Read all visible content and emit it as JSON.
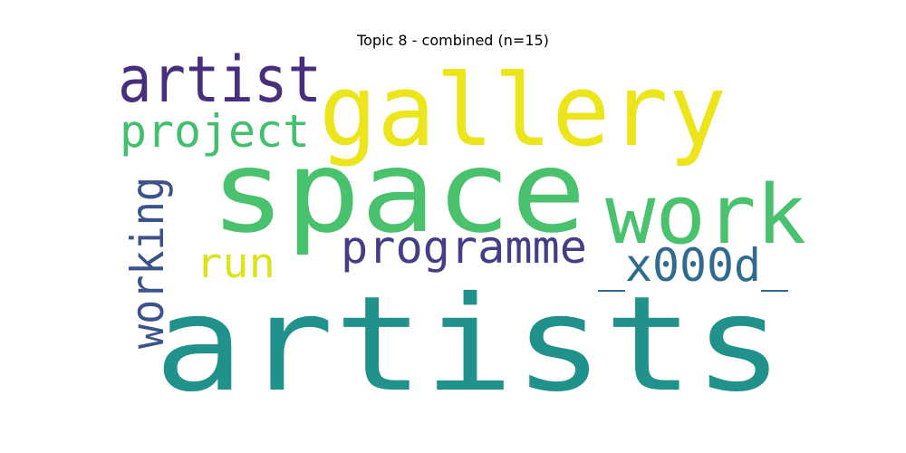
{
  "title": "Topic 8 - combined (n=15)",
  "words": [
    {
      "text": "artists",
      "color": "#21918c",
      "rotated": false
    },
    {
      "text": "space",
      "color": "#4ac16d",
      "rotated": false
    },
    {
      "text": "gallery",
      "color": "#ede51b",
      "rotated": false
    },
    {
      "text": "work",
      "color": "#4ac16d",
      "rotated": false
    },
    {
      "text": "artist",
      "color": "#472f7d",
      "rotated": false
    },
    {
      "text": "project",
      "color": "#44bf70",
      "rotated": false
    },
    {
      "text": "programme",
      "color": "#433e85",
      "rotated": false
    },
    {
      "text": "working",
      "color": "#3b528b",
      "rotated": true
    },
    {
      "text": "run",
      "color": "#dce319",
      "rotated": false
    },
    {
      "text": "_x000d_",
      "color": "#306a8e",
      "rotated": false
    }
  ]
}
